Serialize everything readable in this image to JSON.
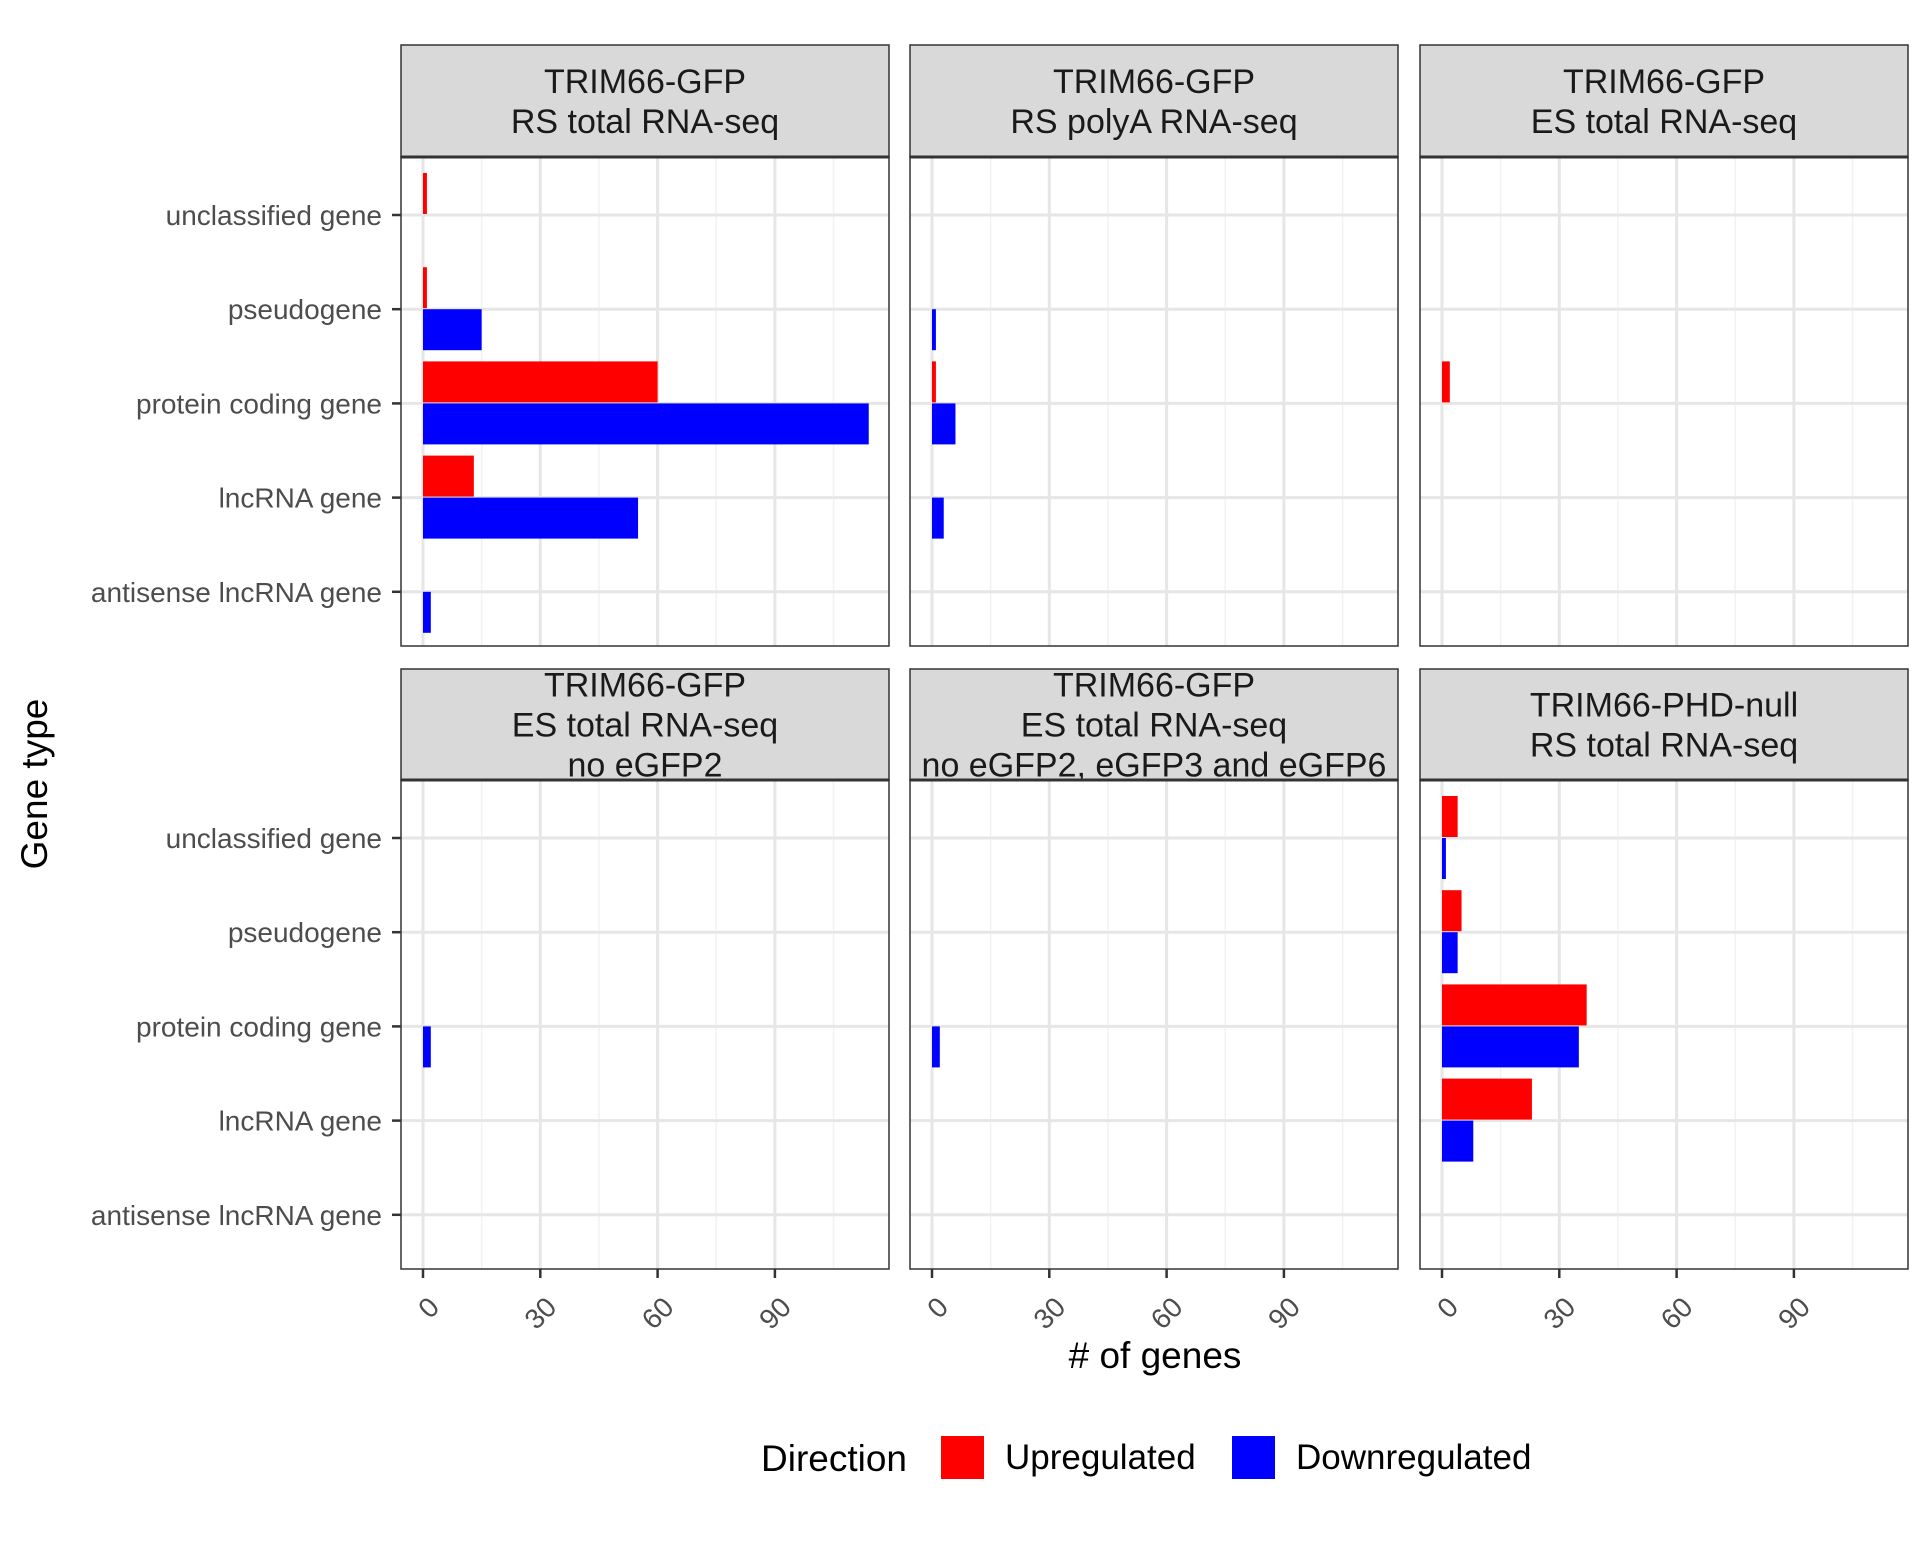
{
  "chart_data": {
    "type": "bar",
    "orientation": "horizontal",
    "facet_layout": "2x3",
    "xlabel": "# of genes",
    "ylabel": "Gene type",
    "xlim": [
      -4,
      120
    ],
    "x_ticks": [
      0,
      30,
      60,
      90
    ],
    "grid": true,
    "legend": {
      "title": "Direction",
      "position": "bottom",
      "entries": [
        "Upregulated",
        "Downregulated"
      ]
    },
    "colors": {
      "Upregulated": "#ff0000",
      "Downregulated": "#0000ff"
    },
    "categories": [
      "unclassified gene",
      "pseudogene",
      "protein coding gene",
      "lncRNA gene",
      "antisense lncRNA gene"
    ],
    "panels": [
      {
        "title": [
          "TRIM66-GFP",
          "RS total RNA-seq"
        ],
        "series": [
          {
            "name": "Upregulated",
            "values": [
              1,
              1,
              60,
              13,
              0
            ]
          },
          {
            "name": "Downregulated",
            "values": [
              0,
              15,
              114,
              55,
              2
            ]
          }
        ]
      },
      {
        "title": [
          "TRIM66-GFP",
          "RS polyA RNA-seq"
        ],
        "series": [
          {
            "name": "Upregulated",
            "values": [
              0,
              0,
              1,
              0,
              0
            ]
          },
          {
            "name": "Downregulated",
            "values": [
              0,
              1,
              6,
              3,
              0
            ]
          }
        ]
      },
      {
        "title": [
          "TRIM66-GFP",
          "ES total RNA-seq"
        ],
        "series": [
          {
            "name": "Upregulated",
            "values": [
              0,
              0,
              2,
              0,
              0
            ]
          },
          {
            "name": "Downregulated",
            "values": [
              0,
              0,
              0,
              0,
              0
            ]
          }
        ]
      },
      {
        "title": [
          "TRIM66-GFP",
          "ES total RNA-seq",
          "no eGFP2"
        ],
        "series": [
          {
            "name": "Upregulated",
            "values": [
              0,
              0,
              0,
              0,
              0
            ]
          },
          {
            "name": "Downregulated",
            "values": [
              0,
              0,
              2,
              0,
              0
            ]
          }
        ]
      },
      {
        "title": [
          "TRIM66-GFP",
          "ES total RNA-seq",
          "no eGFP2, eGFP3 and eGFP6"
        ],
        "series": [
          {
            "name": "Upregulated",
            "values": [
              0,
              0,
              0,
              0,
              0
            ]
          },
          {
            "name": "Downregulated",
            "values": [
              0,
              0,
              2,
              0,
              0
            ]
          }
        ]
      },
      {
        "title": [
          "TRIM66-PHD-null",
          "RS total RNA-seq"
        ],
        "series": [
          {
            "name": "Upregulated",
            "values": [
              4,
              5,
              37,
              23,
              0
            ]
          },
          {
            "name": "Downregulated",
            "values": [
              1,
              4,
              35,
              8,
              0
            ]
          }
        ]
      }
    ]
  }
}
